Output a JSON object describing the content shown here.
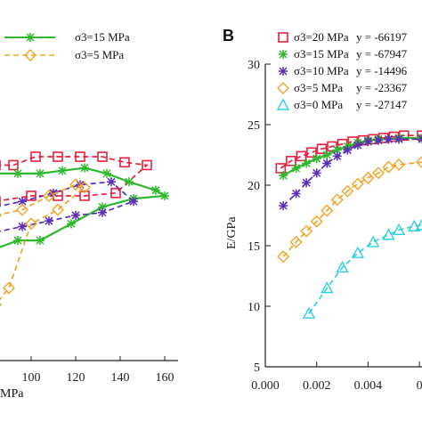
{
  "chart_data": [
    {
      "type": "line",
      "panel_label": "",
      "xlabel_visible": "MPa",
      "xlim": [
        84,
        166
      ],
      "ylim": [
        17,
        28
      ],
      "x_ticks": [
        "100",
        "120",
        "140",
        "160"
      ],
      "legend": [
        {
          "label": "σ3=15 MPa",
          "series": 1
        },
        {
          "label": "σ3=5 MPa",
          "series": 3
        }
      ],
      "series": [
        {
          "name": "σ3=20 MPa",
          "color": "#e8213f",
          "marker": "square",
          "dash": "6,4",
          "points": [
            [
              84,
              24.0
            ],
            [
              92,
              24.0
            ],
            [
              102,
              24.3
            ],
            [
              112,
              24.3
            ],
            [
              122,
              24.3
            ],
            [
              132,
              24.3
            ],
            [
              142,
              24.1
            ],
            [
              152,
              24.0
            ],
            [
              138,
              23.0
            ],
            [
              124,
              22.9
            ],
            [
              112,
              22.9
            ],
            [
              100,
              22.9
            ],
            [
              84,
              22.7
            ]
          ]
        },
        {
          "name": "σ3=15 MPa",
          "color": "#2db82d",
          "marker": "star",
          "dash": "",
          "points": [
            [
              84,
              23.7
            ],
            [
              94,
              23.7
            ],
            [
              104,
              23.7
            ],
            [
              114,
              23.8
            ],
            [
              124,
              23.9
            ],
            [
              134,
              23.7
            ],
            [
              144,
              23.4
            ],
            [
              156,
              23.1
            ],
            [
              160,
              22.9
            ],
            [
              146,
              22.8
            ],
            [
              132,
              22.5
            ],
            [
              118,
              21.9
            ],
            [
              104,
              21.3
            ],
            [
              94,
              21.3
            ],
            [
              84,
              21.0
            ]
          ]
        },
        {
          "name": "σ3=10 MPa",
          "color": "#5b2db8",
          "marker": "star",
          "dash": "6,4",
          "points": [
            [
              84,
              22.5
            ],
            [
              96,
              22.7
            ],
            [
              110,
              23.0
            ],
            [
              122,
              23.3
            ],
            [
              136,
              23.4
            ],
            [
              146,
              22.7
            ],
            [
              132,
              22.3
            ],
            [
              120,
              22.2
            ],
            [
              108,
              22.0
            ],
            [
              96,
              21.8
            ],
            [
              84,
              21.6
            ]
          ]
        },
        {
          "name": "σ3=5 MPa",
          "color": "#f0a526",
          "marker": "diamond",
          "dash": "6,4",
          "points": [
            [
              84,
              22.2
            ],
            [
              96,
              22.4
            ],
            [
              108,
              22.9
            ],
            [
              120,
              23.3
            ],
            [
              124,
              23.2
            ],
            [
              112,
              22.4
            ],
            [
              100,
              21.9
            ],
            [
              90,
              19.6
            ],
            [
              84,
              19.0
            ]
          ]
        }
      ]
    },
    {
      "type": "line",
      "panel_label": "B",
      "xlabel": "",
      "ylabel": "E/GPa",
      "xlim": [
        0.0,
        0.0061
      ],
      "ylim": [
        5,
        30
      ],
      "x_ticks": [
        "0.000",
        "0.002",
        "0.004",
        "0"
      ],
      "y_ticks": [
        "5",
        "10",
        "15",
        "20",
        "25",
        "30"
      ],
      "legend": [
        {
          "label": "σ3=20 MPa",
          "equation": "y = -66197",
          "series": 0
        },
        {
          "label": "σ3=15 MPa",
          "equation": "y = -67947",
          "series": 1
        },
        {
          "label": "σ3=10 MPa",
          "equation": "y = -14496",
          "series": 2
        },
        {
          "label": "σ3=5 MPa",
          "equation": "y = -23367",
          "series": 3
        },
        {
          "label": "σ3=0 MPa",
          "equation": "y = -27147",
          "series": 4
        }
      ],
      "series": [
        {
          "name": "σ3=20 MPa",
          "color": "#e8213f",
          "marker": "square",
          "dash": "6,4",
          "points": [
            [
              0.0006,
              21.4
            ],
            [
              0.001,
              22.0
            ],
            [
              0.0014,
              22.4
            ],
            [
              0.0018,
              22.7
            ],
            [
              0.0022,
              23.0
            ],
            [
              0.0026,
              23.2
            ],
            [
              0.003,
              23.4
            ],
            [
              0.0034,
              23.6
            ],
            [
              0.0038,
              23.7
            ],
            [
              0.0042,
              23.8
            ],
            [
              0.0046,
              23.9
            ],
            [
              0.005,
              24.0
            ],
            [
              0.0054,
              24.1
            ],
            [
              0.0061,
              24.1
            ]
          ]
        },
        {
          "name": "σ3=15 MPa",
          "color": "#2db82d",
          "marker": "star",
          "dash": "",
          "points": [
            [
              0.0007,
              20.8
            ],
            [
              0.0012,
              21.4
            ],
            [
              0.0016,
              21.8
            ],
            [
              0.002,
              22.2
            ],
            [
              0.0024,
              22.5
            ],
            [
              0.0028,
              22.9
            ],
            [
              0.0032,
              23.2
            ],
            [
              0.0036,
              23.5
            ],
            [
              0.004,
              23.7
            ],
            [
              0.0044,
              23.8
            ],
            [
              0.0048,
              23.8
            ],
            [
              0.0052,
              23.9
            ],
            [
              0.0061,
              23.9
            ]
          ]
        },
        {
          "name": "σ3=10 MPa",
          "color": "#5b2db8",
          "marker": "star",
          "dash": "6,4",
          "points": [
            [
              0.0007,
              18.3
            ],
            [
              0.0012,
              19.3
            ],
            [
              0.0016,
              20.2
            ],
            [
              0.002,
              21.0
            ],
            [
              0.0024,
              21.8
            ],
            [
              0.0028,
              22.4
            ],
            [
              0.0032,
              22.9
            ],
            [
              0.0036,
              23.3
            ],
            [
              0.004,
              23.6
            ],
            [
              0.0044,
              23.7
            ],
            [
              0.0048,
              23.8
            ],
            [
              0.0052,
              23.8
            ],
            [
              0.0061,
              23.8
            ]
          ]
        },
        {
          "name": "σ3=5 MPa",
          "color": "#f0a526",
          "marker": "diamond",
          "dash": "6,4",
          "points": [
            [
              0.0007,
              14.1
            ],
            [
              0.0012,
              15.3
            ],
            [
              0.0016,
              16.2
            ],
            [
              0.002,
              17.0
            ],
            [
              0.0024,
              17.9
            ],
            [
              0.0028,
              18.8
            ],
            [
              0.0032,
              19.5
            ],
            [
              0.0036,
              20.1
            ],
            [
              0.004,
              20.6
            ],
            [
              0.0044,
              21.0
            ],
            [
              0.0048,
              21.5
            ],
            [
              0.0052,
              21.7
            ],
            [
              0.0061,
              21.9
            ]
          ]
        },
        {
          "name": "σ3=0 MPa",
          "color": "#2fd0e0",
          "marker": "triangle",
          "dash": "6,4",
          "points": [
            [
              0.0017,
              9.4
            ],
            [
              0.0024,
              11.5
            ],
            [
              0.003,
              13.2
            ],
            [
              0.0036,
              14.4
            ],
            [
              0.0042,
              15.3
            ],
            [
              0.0048,
              15.9
            ],
            [
              0.0052,
              16.3
            ],
            [
              0.0058,
              16.6
            ],
            [
              0.0061,
              16.7
            ]
          ]
        }
      ]
    }
  ]
}
